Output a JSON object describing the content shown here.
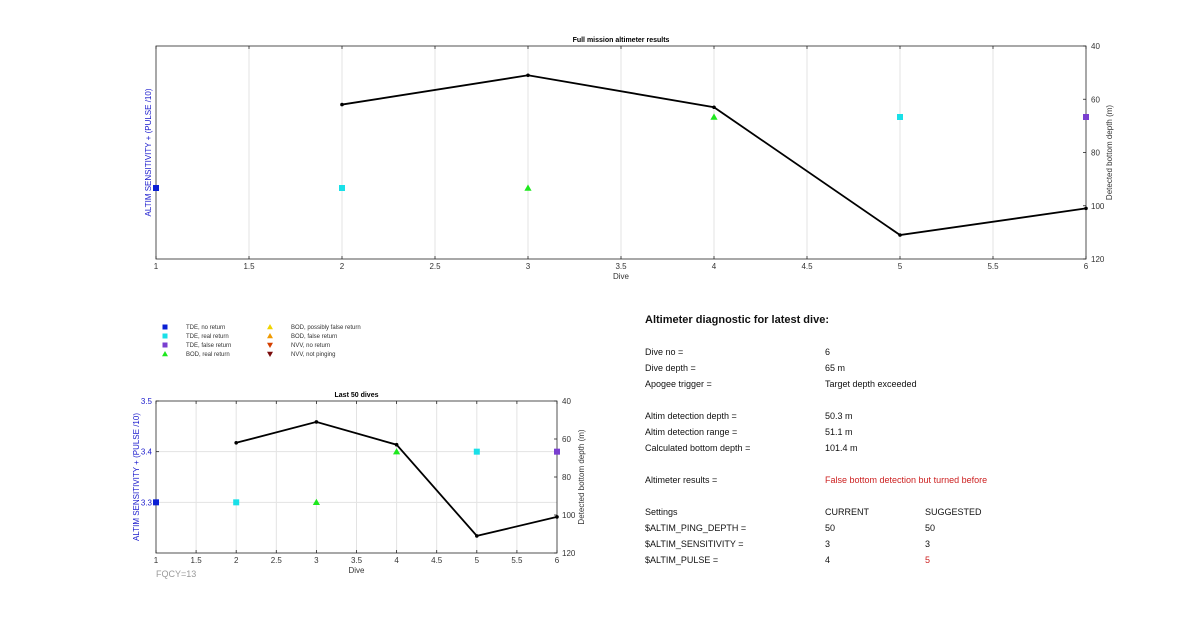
{
  "colors": {
    "tde_no_return": "#0a1fd4",
    "tde_real_return": "#19e0e8",
    "tde_false_return": "#7a3fd0",
    "bod_real_return": "#1ee81e",
    "bod_possibly_false": "#f0d400",
    "bod_false_return": "#f09a00",
    "nvv_no_return": "#d44000",
    "nvv_not_pinging": "#7a0c0c",
    "left_axis_label": "#1a1acc",
    "line": "#000000",
    "alert_red": "#cc1f1f"
  },
  "legend": {
    "items": [
      {
        "label": "TDE, no return",
        "symbol": "square",
        "color": "#0a1fd4"
      },
      {
        "label": "TDE, real return",
        "symbol": "square",
        "color": "#19e0e8"
      },
      {
        "label": "TDE, false return",
        "symbol": "square",
        "color": "#7a3fd0"
      },
      {
        "label": "BOD, real return",
        "symbol": "triangle-up",
        "color": "#1ee81e"
      },
      {
        "label": "BOD, possibly false return",
        "symbol": "triangle-up",
        "color": "#f0d400"
      },
      {
        "label": "BOD, false return",
        "symbol": "triangle-up",
        "color": "#f09a00"
      },
      {
        "label": "NVV, no return",
        "symbol": "triangle-down",
        "color": "#d44000"
      },
      {
        "label": "NVV, not pinging",
        "symbol": "triangle-down",
        "color": "#7a0c0c"
      }
    ]
  },
  "chart_data": [
    {
      "type": "line",
      "title": "Full mission altimeter results",
      "xlabel": "Dive",
      "ylabel_left": "ALTIM SENSITIVITY + (PULSE /10)",
      "ylabel_right": "Detected bottom depth (m)",
      "xlim": [
        1,
        6
      ],
      "xticks": [
        "1",
        "1.5",
        "2",
        "2.5",
        "3",
        "3.5",
        "4",
        "4.5",
        "5",
        "5.5",
        "6"
      ],
      "ylim_left": [
        3.2,
        3.5
      ],
      "yticks_left": [],
      "ylim_right": [
        40,
        120
      ],
      "yticks_right": [
        "40",
        "60",
        "80",
        "100",
        "120"
      ],
      "right_axis_reversed": true,
      "grid": "x",
      "bottom_depth": {
        "x": [
          2,
          3,
          4,
          5,
          6
        ],
        "y": [
          62,
          51,
          63,
          111,
          101
        ]
      },
      "markers": [
        {
          "x": 1,
          "y": 3.3,
          "symbol": "square",
          "color": "#0a1fd4"
        },
        {
          "x": 2,
          "y": 3.3,
          "symbol": "square",
          "color": "#19e0e8"
        },
        {
          "x": 3,
          "y": 3.3,
          "symbol": "triangle-up",
          "color": "#1ee81e"
        },
        {
          "x": 4,
          "y": 3.4,
          "symbol": "triangle-up",
          "color": "#1ee81e"
        },
        {
          "x": 5,
          "y": 3.4,
          "symbol": "square",
          "color": "#19e0e8"
        },
        {
          "x": 6,
          "y": 3.4,
          "symbol": "square",
          "color": "#7a3fd0"
        }
      ]
    },
    {
      "type": "line",
      "title": "Last 50 dives",
      "xlabel": "Dive",
      "ylabel_left": "ALTIM SENSITIVITY + (PULSE /10)",
      "ylabel_right": "Detected bottom depth (m)",
      "xlim": [
        1,
        6
      ],
      "xticks": [
        "1",
        "1.5",
        "2",
        "2.5",
        "3",
        "3.5",
        "4",
        "4.5",
        "5",
        "5.5",
        "6"
      ],
      "ylim_left": [
        3.2,
        3.5
      ],
      "yticks_left": [
        "3.3",
        "3.4",
        "3.5"
      ],
      "ylim_right": [
        40,
        120
      ],
      "yticks_right": [
        "40",
        "60",
        "80",
        "100",
        "120"
      ],
      "right_axis_reversed": true,
      "grid": "xy",
      "bottom_depth": {
        "x": [
          2,
          3,
          4,
          5,
          6
        ],
        "y": [
          62,
          51,
          63,
          111,
          101
        ]
      },
      "markers": [
        {
          "x": 1,
          "y": 3.3,
          "symbol": "square",
          "color": "#0a1fd4"
        },
        {
          "x": 2,
          "y": 3.3,
          "symbol": "square",
          "color": "#19e0e8"
        },
        {
          "x": 3,
          "y": 3.3,
          "symbol": "triangle-up",
          "color": "#1ee81e"
        },
        {
          "x": 4,
          "y": 3.4,
          "symbol": "triangle-up",
          "color": "#1ee81e"
        },
        {
          "x": 5,
          "y": 3.4,
          "symbol": "square",
          "color": "#19e0e8"
        },
        {
          "x": 6,
          "y": 3.4,
          "symbol": "square",
          "color": "#7a3fd0"
        }
      ],
      "note": "FQCY=13"
    }
  ],
  "diagnostic": {
    "title": "Altimeter diagnostic for latest dive:",
    "dive_no_label": "Dive no =",
    "dive_no_value": "6",
    "dive_depth_label": "Dive depth =",
    "dive_depth_value": "65 m",
    "apogee_label": "Apogee trigger =",
    "apogee_value": "Target depth exceeded",
    "altim_depth_label": "Altim detection depth =",
    "altim_depth_value": "50.3 m",
    "altim_range_label": "Altim detection range =",
    "altim_range_value": "51.1 m",
    "calc_bottom_label": "Calculated bottom depth =",
    "calc_bottom_value": "101.4 m",
    "results_label": "Altimeter results =",
    "results_value": "False bottom detection but turned before",
    "settings_label": "Settings",
    "current_label": "CURRENT",
    "suggested_label": "SUGGESTED",
    "rows": [
      {
        "name": "$ALTIM_PING_DEPTH =",
        "current": "50",
        "suggested": "50",
        "suggested_highlight": false
      },
      {
        "name": "$ALTIM_SENSITIVITY =",
        "current": "3",
        "suggested": "3",
        "suggested_highlight": false
      },
      {
        "name": "$ALTIM_PULSE =",
        "current": "4",
        "suggested": "5",
        "suggested_highlight": true
      }
    ]
  }
}
